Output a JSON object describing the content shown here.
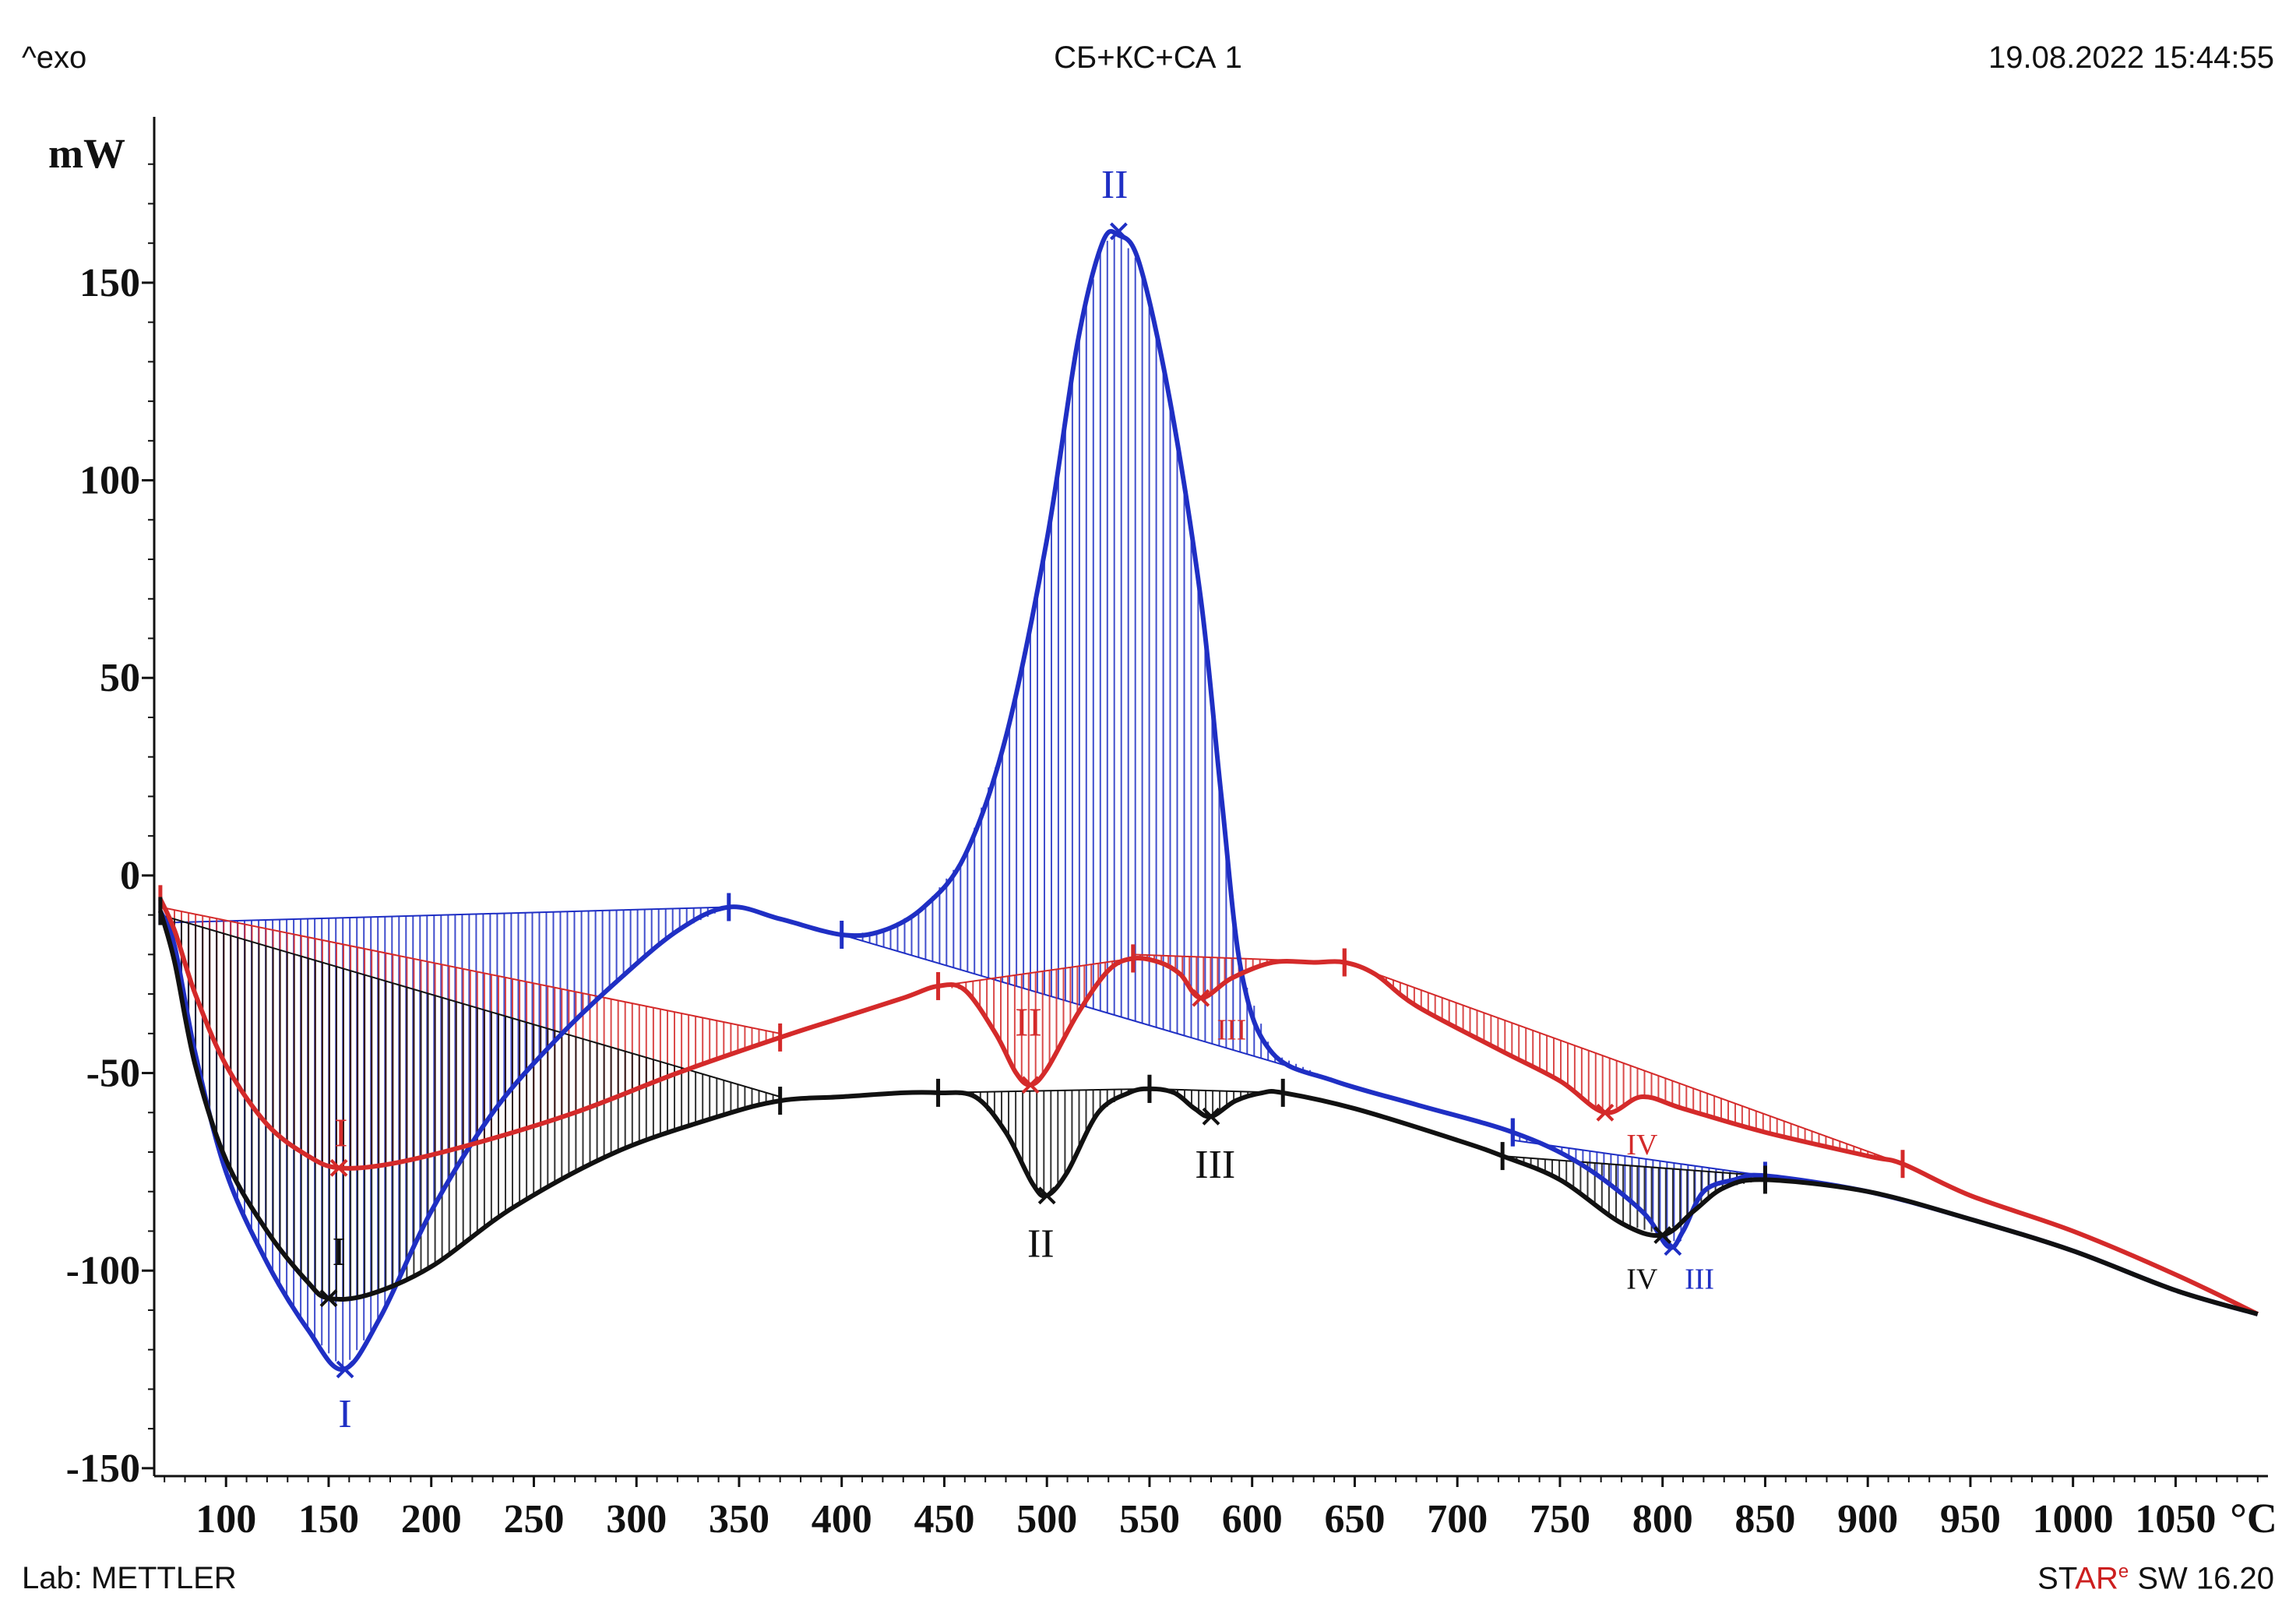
{
  "header": {
    "exo_label": "^exo",
    "title": "СБ+КС+СА 1",
    "timestamp": "19.08.2022 15:44:55"
  },
  "footer": {
    "lab": "Lab: METTLER",
    "software_prefix": "ST",
    "software_accent": "AR",
    "software_sup": "e",
    "software_suffix": " SW 16.20"
  },
  "colors": {
    "blue": "#1f2fc4",
    "red": "#d42a2a",
    "black": "#111111",
    "axis": "#111111"
  },
  "chart_data": {
    "type": "line",
    "title": "СБ+КС+СА 1",
    "xlabel": "°C",
    "ylabel": "mW",
    "xlim": [
      65,
      1095
    ],
    "ylim": [
      -152,
      190
    ],
    "x_ticks": [
      100,
      150,
      200,
      250,
      300,
      350,
      400,
      450,
      500,
      550,
      600,
      650,
      700,
      750,
      800,
      850,
      900,
      950,
      1000,
      1050
    ],
    "x_tick_labels": [
      "100",
      "150",
      "200",
      "250",
      "300",
      "350",
      "400",
      "450",
      "500",
      "550",
      "600",
      "650",
      "700",
      "750",
      "800",
      "850",
      "900",
      "950",
      "1000",
      "1050"
    ],
    "y_ticks": [
      150,
      100,
      50,
      0,
      -50,
      -100,
      -150
    ],
    "y_tick_labels": [
      "150",
      "100",
      "50",
      "0",
      "-50",
      "-100",
      "-150"
    ],
    "series": [
      {
        "name": "blue",
        "color": "#1f2fc4",
        "points": [
          [
            68,
            -9
          ],
          [
            75,
            -18
          ],
          [
            85,
            -45
          ],
          [
            100,
            -75
          ],
          [
            120,
            -98
          ],
          [
            140,
            -115
          ],
          [
            157,
            -125
          ],
          [
            175,
            -112
          ],
          [
            200,
            -85
          ],
          [
            230,
            -60
          ],
          [
            260,
            -42
          ],
          [
            290,
            -27
          ],
          [
            320,
            -14
          ],
          [
            345,
            -8
          ],
          [
            370,
            -11
          ],
          [
            400,
            -15
          ],
          [
            420,
            -14
          ],
          [
            440,
            -8
          ],
          [
            460,
            5
          ],
          [
            480,
            35
          ],
          [
            500,
            85
          ],
          [
            515,
            135
          ],
          [
            527,
            160
          ],
          [
            535,
            162
          ],
          [
            545,
            155
          ],
          [
            560,
            120
          ],
          [
            575,
            70
          ],
          [
            585,
            20
          ],
          [
            595,
            -25
          ],
          [
            610,
            -45
          ],
          [
            640,
            -52
          ],
          [
            680,
            -58
          ],
          [
            727,
            -65
          ],
          [
            760,
            -73
          ],
          [
            790,
            -85
          ],
          [
            803,
            -94
          ],
          [
            810,
            -90
          ],
          [
            820,
            -80
          ],
          [
            835,
            -77
          ],
          [
            850,
            -76
          ],
          [
            900,
            -80
          ],
          [
            950,
            -87
          ],
          [
            1000,
            -95
          ],
          [
            1050,
            -105
          ],
          [
            1090,
            -111
          ]
        ],
        "peaks": [
          {
            "label": "I",
            "x": 158,
            "y": -125
          },
          {
            "label": "II",
            "x": 535,
            "y": 163
          },
          {
            "label": "III",
            "x": 805,
            "y": -94
          }
        ],
        "baselines": [
          [
            68,
            -12,
            345,
            -8
          ],
          [
            400,
            -15,
            727,
            -65
          ],
          [
            727,
            -67,
            850,
            -76
          ]
        ]
      },
      {
        "name": "red",
        "color": "#d42a2a",
        "points": [
          [
            68,
            -6
          ],
          [
            75,
            -14
          ],
          [
            85,
            -30
          ],
          [
            100,
            -48
          ],
          [
            120,
            -63
          ],
          [
            140,
            -71
          ],
          [
            155,
            -74
          ],
          [
            180,
            -73
          ],
          [
            220,
            -68
          ],
          [
            270,
            -60
          ],
          [
            320,
            -50
          ],
          [
            370,
            -41
          ],
          [
            400,
            -36
          ],
          [
            430,
            -31
          ],
          [
            447,
            -28
          ],
          [
            460,
            -29
          ],
          [
            475,
            -40
          ],
          [
            485,
            -50
          ],
          [
            492,
            -53
          ],
          [
            500,
            -49
          ],
          [
            515,
            -35
          ],
          [
            530,
            -24
          ],
          [
            542,
            -21
          ],
          [
            555,
            -22
          ],
          [
            565,
            -25
          ],
          [
            575,
            -31
          ],
          [
            590,
            -26
          ],
          [
            610,
            -22
          ],
          [
            630,
            -22
          ],
          [
            645,
            -22
          ],
          [
            660,
            -25
          ],
          [
            680,
            -33
          ],
          [
            720,
            -44
          ],
          [
            750,
            -52
          ],
          [
            772,
            -60
          ],
          [
            790,
            -56
          ],
          [
            810,
            -59
          ],
          [
            850,
            -65
          ],
          [
            900,
            -71
          ],
          [
            917,
            -73
          ],
          [
            950,
            -81
          ],
          [
            1000,
            -90
          ],
          [
            1050,
            -101
          ],
          [
            1090,
            -111
          ]
        ],
        "peaks": [
          {
            "label": "I",
            "x": 155,
            "y": -74
          },
          {
            "label": "II",
            "x": 492,
            "y": -53
          },
          {
            "label": "III",
            "x": 575,
            "y": -31
          },
          {
            "label": "IV",
            "x": 772,
            "y": -60
          }
        ],
        "baselines": [
          [
            68,
            -8,
            370,
            -40
          ],
          [
            447,
            -28,
            542,
            -21
          ],
          [
            542,
            -20,
            645,
            -22
          ],
          [
            645,
            -22,
            917,
            -73
          ]
        ]
      },
      {
        "name": "black",
        "color": "#111111",
        "points": [
          [
            68,
            -9
          ],
          [
            75,
            -22
          ],
          [
            85,
            -48
          ],
          [
            100,
            -72
          ],
          [
            120,
            -90
          ],
          [
            140,
            -103
          ],
          [
            150,
            -107
          ],
          [
            170,
            -106
          ],
          [
            200,
            -99
          ],
          [
            240,
            -84
          ],
          [
            290,
            -70
          ],
          [
            340,
            -61
          ],
          [
            370,
            -57
          ],
          [
            400,
            -56
          ],
          [
            430,
            -55
          ],
          [
            447,
            -55
          ],
          [
            465,
            -56
          ],
          [
            480,
            -65
          ],
          [
            493,
            -78
          ],
          [
            500,
            -81
          ],
          [
            510,
            -75
          ],
          [
            525,
            -60
          ],
          [
            540,
            -55
          ],
          [
            550,
            -54
          ],
          [
            562,
            -55
          ],
          [
            572,
            -59
          ],
          [
            580,
            -61
          ],
          [
            592,
            -57
          ],
          [
            605,
            -55
          ],
          [
            615,
            -55
          ],
          [
            650,
            -59
          ],
          [
            700,
            -67
          ],
          [
            722,
            -71
          ],
          [
            750,
            -77
          ],
          [
            780,
            -88
          ],
          [
            800,
            -91
          ],
          [
            815,
            -85
          ],
          [
            830,
            -79
          ],
          [
            850,
            -77
          ],
          [
            900,
            -80
          ],
          [
            950,
            -87
          ],
          [
            1000,
            -95
          ],
          [
            1050,
            -105
          ],
          [
            1090,
            -111
          ]
        ],
        "peaks": [
          {
            "label": "I",
            "x": 150,
            "y": -107
          },
          {
            "label": "II",
            "x": 500,
            "y": -81
          },
          {
            "label": "III",
            "x": 580,
            "y": -61
          },
          {
            "label": "IV",
            "x": 800,
            "y": -91
          }
        ],
        "baselines": [
          [
            68,
            -10,
            370,
            -56
          ],
          [
            447,
            -55,
            550,
            -54
          ],
          [
            550,
            -54,
            615,
            -55
          ],
          [
            722,
            -71,
            850,
            -76
          ]
        ]
      }
    ],
    "peak_labels": [
      {
        "series": "blue",
        "text": "I",
        "x": 158,
        "y": -136
      },
      {
        "series": "blue",
        "text": "II",
        "x": 533,
        "y": 175
      },
      {
        "series": "blue",
        "text": "III",
        "x": 818,
        "y": -101
      },
      {
        "series": "red",
        "text": "I",
        "x": 156,
        "y": -65
      },
      {
        "series": "red",
        "text": "II",
        "x": 491,
        "y": -37
      },
      {
        "series": "red",
        "text": "III",
        "x": 590,
        "y": -38
      },
      {
        "series": "red",
        "text": "IV",
        "x": 790,
        "y": -67
      },
      {
        "series": "black",
        "text": "I",
        "x": 155,
        "y": -95
      },
      {
        "series": "black",
        "text": "II",
        "x": 497,
        "y": -93
      },
      {
        "series": "black",
        "text": "III",
        "x": 582,
        "y": -73
      },
      {
        "series": "black",
        "text": "IV",
        "x": 790,
        "y": -101
      }
    ]
  }
}
